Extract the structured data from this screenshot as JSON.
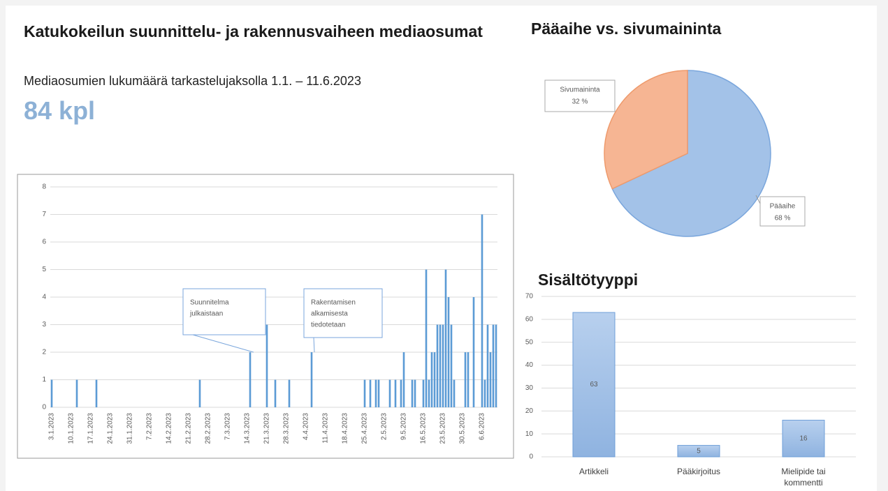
{
  "header": {
    "title": "Katukokeilun suunnittelu- ja rakennusvaiheen mediaosumat",
    "subtitle": "Mediaosumien lukumäärä tarkastelujaksolla 1.1. – 11.6.2023",
    "kpi": "84 kpl"
  },
  "chart_data": [
    {
      "type": "bar",
      "color": "#5b9bd5",
      "grid": true,
      "categories": [
        "3.1.2023",
        null,
        null,
        null,
        null,
        null,
        null,
        "10.1.2023",
        null,
        null,
        null,
        null,
        null,
        null,
        "17.1.2023",
        null,
        null,
        null,
        null,
        null,
        null,
        "24.1.2023",
        null,
        null,
        null,
        null,
        null,
        null,
        "31.1.2023",
        null,
        null,
        null,
        null,
        null,
        null,
        "7.2.2023",
        null,
        null,
        null,
        null,
        null,
        null,
        "14.2.2023",
        null,
        null,
        null,
        null,
        null,
        null,
        "21.2.2023",
        null,
        null,
        null,
        null,
        null,
        null,
        "28.2.2023",
        null,
        null,
        null,
        null,
        null,
        null,
        "7.3.2023",
        null,
        null,
        null,
        null,
        null,
        null,
        "14.3.2023",
        null,
        null,
        null,
        null,
        null,
        null,
        "21.3.2023",
        null,
        null,
        null,
        null,
        null,
        null,
        "28.3.2023",
        null,
        null,
        null,
        null,
        null,
        null,
        "4.4.2023",
        null,
        null,
        null,
        null,
        null,
        null,
        "11.4.2023",
        null,
        null,
        null,
        null,
        null,
        null,
        "18.4.2023",
        null,
        null,
        null,
        null,
        null,
        null,
        "25.4.2023",
        null,
        null,
        null,
        null,
        null,
        null,
        "2.5.2023",
        null,
        null,
        null,
        null,
        null,
        null,
        "9.5.2023",
        null,
        null,
        null,
        null,
        null,
        null,
        "16.5.2023",
        null,
        null,
        null,
        null,
        null,
        null,
        "23.5.2023",
        null,
        null,
        null,
        null,
        null,
        null,
        "30.5.2023",
        null,
        null,
        null,
        null,
        null,
        null,
        "6.6.2023",
        null,
        null,
        null,
        null,
        null
      ],
      "values": [
        1,
        0,
        0,
        0,
        0,
        0,
        0,
        0,
        0,
        1,
        0,
        0,
        0,
        0,
        0,
        0,
        1,
        0,
        0,
        0,
        0,
        0,
        0,
        0,
        0,
        0,
        0,
        0,
        0,
        0,
        0,
        0,
        0,
        0,
        0,
        0,
        0,
        0,
        0,
        0,
        0,
        0,
        0,
        0,
        0,
        0,
        0,
        0,
        0,
        0,
        0,
        0,
        0,
        1,
        0,
        0,
        0,
        0,
        0,
        0,
        0,
        0,
        0,
        0,
        0,
        0,
        0,
        0,
        0,
        0,
        0,
        2,
        0,
        0,
        0,
        0,
        0,
        3,
        0,
        0,
        1,
        0,
        0,
        0,
        0,
        1,
        0,
        0,
        0,
        0,
        0,
        0,
        0,
        2,
        0,
        0,
        0,
        0,
        0,
        0,
        0,
        0,
        0,
        0,
        0,
        0,
        0,
        0,
        0,
        0,
        0,
        0,
        1,
        0,
        1,
        0,
        1,
        1,
        0,
        0,
        0,
        1,
        0,
        1,
        0,
        1,
        2,
        0,
        0,
        1,
        1,
        0,
        0,
        1,
        5,
        1,
        2,
        2,
        3,
        3,
        3,
        5,
        4,
        3,
        1,
        0,
        0,
        0,
        2,
        2,
        0,
        4,
        0,
        0,
        7,
        1,
        3,
        2,
        3,
        3
      ],
      "ylim": [
        0,
        8
      ],
      "yticks": [
        0,
        1,
        2,
        3,
        4,
        5,
        6,
        7,
        8
      ],
      "annotations": [
        {
          "lines": [
            "Suunnitelma",
            "julkaistaan"
          ]
        },
        {
          "lines": [
            "Rakentamisen",
            "alkamisesta",
            "tiedotetaan"
          ]
        }
      ]
    },
    {
      "type": "pie",
      "title": "Pääaihe vs. sivumaininta",
      "categories": [
        "Pääaihe",
        "Sivumaininta"
      ],
      "values": [
        68,
        32
      ],
      "value_labels": [
        "68 %",
        "32 %"
      ],
      "colors": [
        "#a3c2e8",
        "#f6b593"
      ],
      "edge_colors": [
        "#7aa6dc",
        "#ee9a6c"
      ]
    },
    {
      "type": "bar",
      "title": "Sisältötyyppi",
      "color": "#a9c6ea",
      "edge_color": "#6f9fd8",
      "grid": true,
      "show_values": true,
      "categories": [
        "Artikkeli",
        "Pääkirjoitus",
        "Mielipide tai kommentti"
      ],
      "values": [
        63,
        5,
        16
      ],
      "ylim": [
        0,
        70
      ],
      "yticks": [
        0,
        10,
        20,
        30,
        40,
        50,
        60,
        70
      ]
    }
  ]
}
